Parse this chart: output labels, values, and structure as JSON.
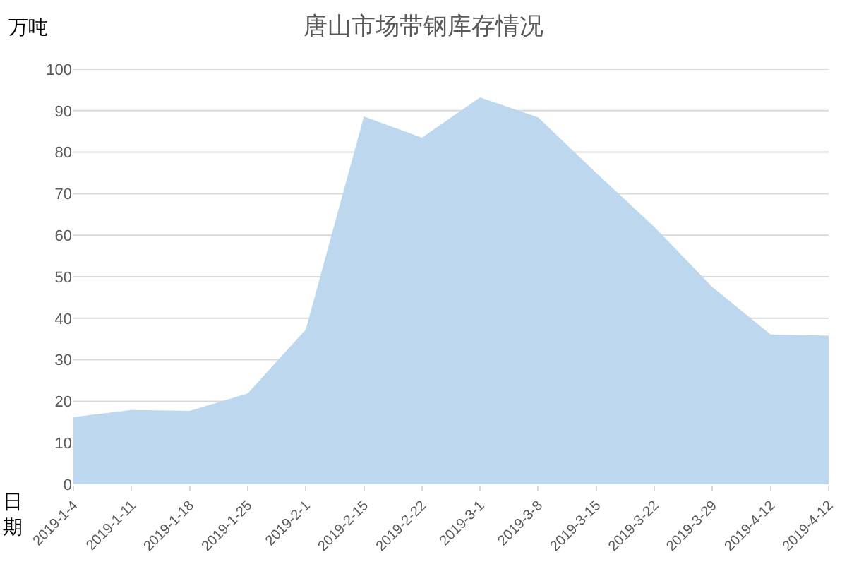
{
  "chart_data": {
    "type": "area",
    "title": "唐山市场带钢库存情况",
    "ylabel": "万吨",
    "xlabel": "日期",
    "categories": [
      "2019-1-4",
      "2019-1-11",
      "2019-1-18",
      "2019-1-25",
      "2019-2-1",
      "2019-2-15",
      "2019-2-22",
      "2019-3-1",
      "2019-3-8",
      "2019-3-15",
      "2019-3-22",
      "2019-3-29",
      "2019-4-12",
      "2019-4-12"
    ],
    "values": [
      16.2,
      17.9,
      17.7,
      21.9,
      37.3,
      88.6,
      83.5,
      93.2,
      88.4,
      75,
      62,
      47.5,
      36.1,
      35.8
    ],
    "color": "#bdd7ee",
    "ylim": [
      0,
      100
    ],
    "yticks": [
      0,
      10,
      20,
      30,
      40,
      50,
      60,
      70,
      80,
      90,
      100
    ],
    "grid": "y"
  }
}
